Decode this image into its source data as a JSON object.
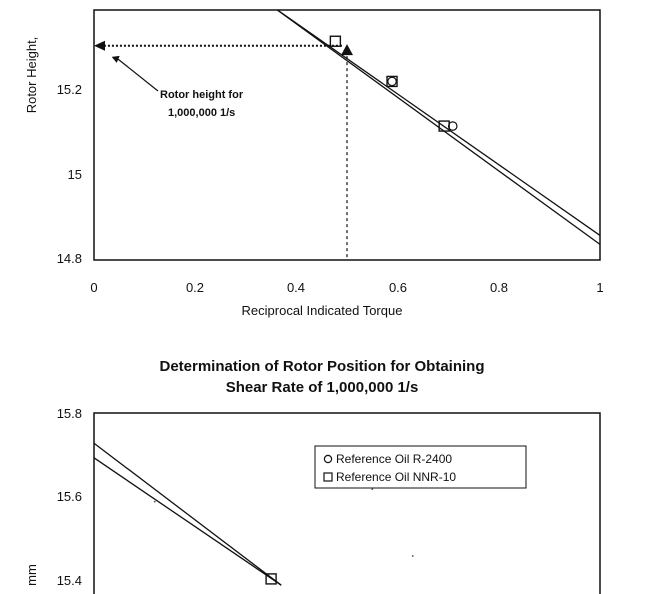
{
  "chart_data": [
    {
      "type": "line",
      "title": "",
      "xlabel": "Reciprocal Indicated Torque",
      "ylabel": "Rotor Height,",
      "xlim": [
        0,
        1
      ],
      "ylim": [
        14.8,
        15.36
      ],
      "x_ticks": [
        "0",
        "0.2",
        "0.4",
        "0.6",
        "0.8",
        "1"
      ],
      "y_ticks": [
        "15.2",
        "15",
        "14.8"
      ],
      "grid": false,
      "series": [
        {
          "line": [
            [
              0.35,
              15.37
            ],
            [
              1.0,
              14.855
            ]
          ],
          "points": [
            [
              0.589,
              15.2
            ],
            [
              0.709,
              15.1
            ]
          ]
        },
        {
          "line": [
            [
              0.35,
              15.37
            ],
            [
              1.0,
              14.835
            ]
          ],
          "points": [
            [
              0.477,
              15.29
            ],
            [
              0.589,
              15.2
            ],
            [
              0.692,
              15.1
            ]
          ]
        }
      ],
      "annotations": [
        {
          "text_lines": [
            "Rotor height for",
            "1,000,000 1/s"
          ],
          "arrow_to": [
            0.035,
            15.255
          ]
        }
      ],
      "reference_lines": {
        "horizontal": {
          "y": 15.28,
          "from_x": 0.49,
          "to_x": 0.0
        },
        "vertical": {
          "x": 0.5,
          "from_y": 15.27,
          "to_y": 14.8
        },
        "marker": [
          0.5,
          15.27
        ]
      }
    },
    {
      "type": "line",
      "title": "Determination of Rotor Position for Obtaining\nShear Rate of  1,000,000 1/s",
      "xlabel": "",
      "ylabel": "mm",
      "ylim": [
        15.4,
        15.8
      ],
      "xlim": [
        0,
        1
      ],
      "y_ticks": [
        "15.8",
        "15.6",
        "15.4"
      ],
      "grid": false,
      "legend": {
        "placement": "top-right",
        "entries": [
          {
            "marker": "circle",
            "label": "Reference Oil R-2400"
          },
          {
            "marker": "square",
            "label": "Reference Oil NNR-10"
          }
        ]
      },
      "series": [
        {
          "line": [
            [
              0.0,
              15.73
            ],
            [
              0.37,
              15.39
            ]
          ]
        },
        {
          "line": [
            [
              0.0,
              15.695
            ],
            [
              0.37,
              15.39
            ]
          ],
          "points": [
            [
              0.35,
              15.405
            ]
          ]
        }
      ]
    }
  ]
}
